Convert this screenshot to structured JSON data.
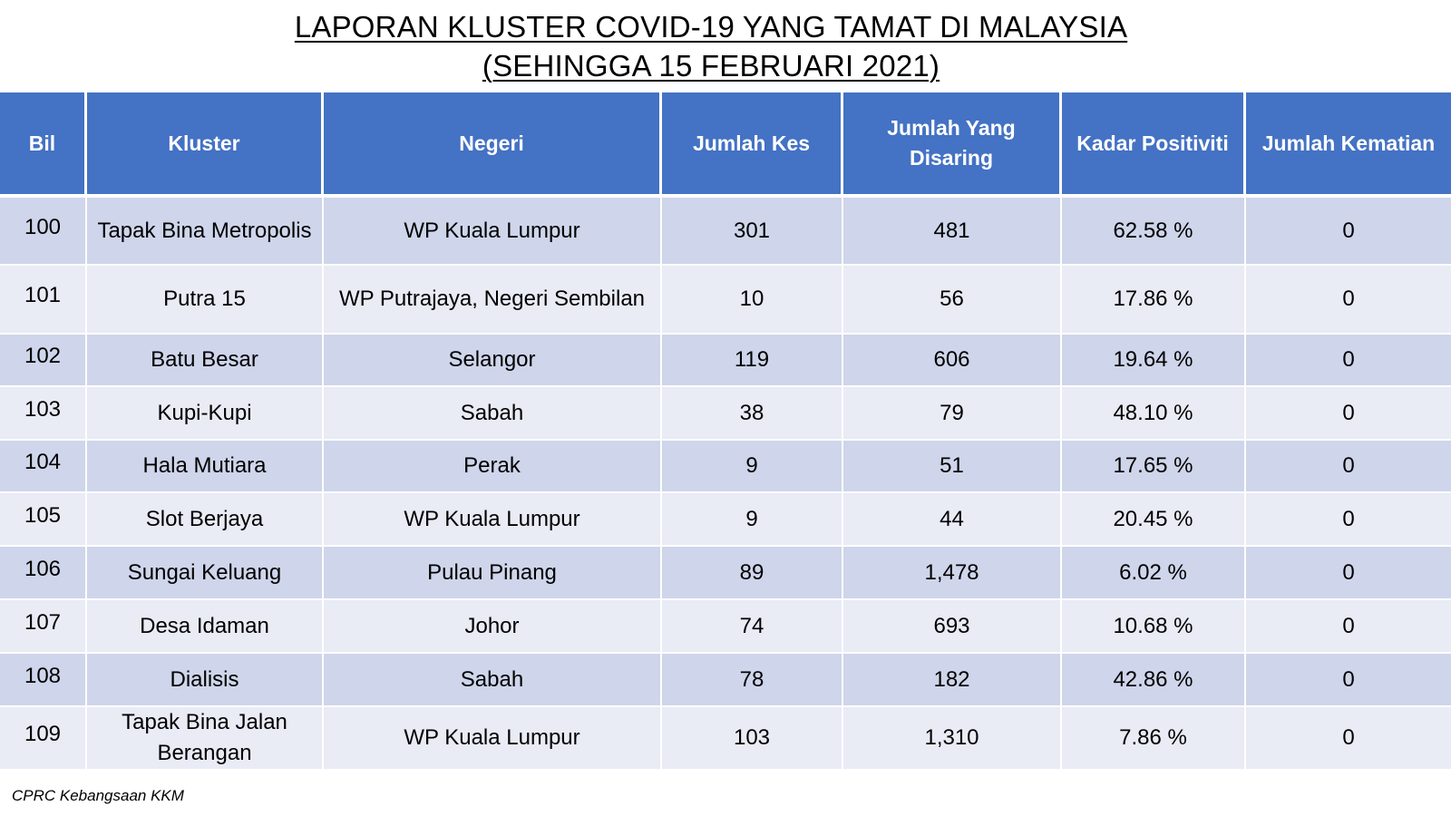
{
  "title": {
    "line1": "LAPORAN KLUSTER COVID-19 YANG TAMAT DI MALAYSIA",
    "line2": "(SEHINGGA  15 FEBRUARI 2021)"
  },
  "table": {
    "headers": {
      "bil": "Bil",
      "kluster": "Kluster",
      "negeri": "Negeri",
      "jumlah_kes": "Jumlah Kes",
      "jumlah_disaring": "Jumlah Yang Disaring",
      "kadar_positiviti": "Kadar Positiviti",
      "jumlah_kematian": "Jumlah Kematian"
    },
    "rows": [
      {
        "bil": "100",
        "kluster": "Tapak Bina Metropolis",
        "negeri": "WP Kuala Lumpur",
        "jumlah_kes": "301",
        "jumlah_disaring": "481",
        "kadar_positiviti": "62.58 %",
        "jumlah_kematian": "0"
      },
      {
        "bil": "101",
        "kluster": "Putra 15",
        "negeri": "WP Putrajaya, Negeri Sembilan",
        "jumlah_kes": "10",
        "jumlah_disaring": "56",
        "kadar_positiviti": "17.86 %",
        "jumlah_kematian": "0"
      },
      {
        "bil": "102",
        "kluster": "Batu Besar",
        "negeri": "Selangor",
        "jumlah_kes": "119",
        "jumlah_disaring": "606",
        "kadar_positiviti": "19.64 %",
        "jumlah_kematian": "0"
      },
      {
        "bil": "103",
        "kluster": "Kupi-Kupi",
        "negeri": "Sabah",
        "jumlah_kes": "38",
        "jumlah_disaring": "79",
        "kadar_positiviti": "48.10 %",
        "jumlah_kematian": "0"
      },
      {
        "bil": "104",
        "kluster": "Hala Mutiara",
        "negeri": "Perak",
        "jumlah_kes": "9",
        "jumlah_disaring": "51",
        "kadar_positiviti": "17.65 %",
        "jumlah_kematian": "0"
      },
      {
        "bil": "105",
        "kluster": "Slot Berjaya",
        "negeri": "WP Kuala Lumpur",
        "jumlah_kes": "9",
        "jumlah_disaring": "44",
        "kadar_positiviti": "20.45 %",
        "jumlah_kematian": "0"
      },
      {
        "bil": "106",
        "kluster": "Sungai Keluang",
        "negeri": "Pulau Pinang",
        "jumlah_kes": "89",
        "jumlah_disaring": "1,478",
        "kadar_positiviti": "6.02 %",
        "jumlah_kematian": "0"
      },
      {
        "bil": "107",
        "kluster": "Desa Idaman",
        "negeri": "Johor",
        "jumlah_kes": "74",
        "jumlah_disaring": "693",
        "kadar_positiviti": "10.68 %",
        "jumlah_kematian": "0"
      },
      {
        "bil": "108",
        "kluster": "Dialisis",
        "negeri": "Sabah",
        "jumlah_kes": "78",
        "jumlah_disaring": "182",
        "kadar_positiviti": "42.86 %",
        "jumlah_kematian": "0"
      },
      {
        "bil": "109",
        "kluster": "Tapak Bina Jalan Berangan",
        "negeri": "WP Kuala Lumpur",
        "jumlah_kes": "103",
        "jumlah_disaring": "1,310",
        "kadar_positiviti": "7.86 %",
        "jumlah_kematian": "0"
      }
    ]
  },
  "source": "CPRC Kebangsaan KKM",
  "colors": {
    "header_bg": "#4472c4",
    "row_dark": "#cfd5ea",
    "row_light": "#e9ebf5"
  }
}
